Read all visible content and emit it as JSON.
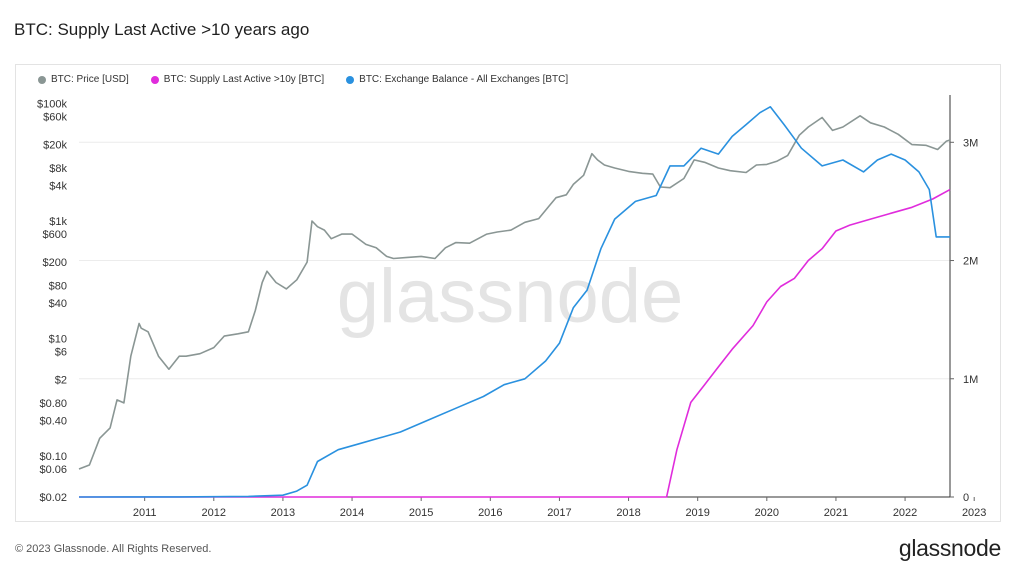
{
  "page": {
    "title": "BTC: Supply Last Active >10 years ago",
    "copyright": "© 2023 Glassnode. All Rights Reserved.",
    "brand": "glassnode",
    "watermark": "glassnode"
  },
  "chart_data": {
    "type": "line",
    "title": "BTC: Supply Last Active >10 years ago",
    "legend_position": "top-left",
    "grid": true,
    "x_ticks": [
      "2011",
      "2012",
      "2013",
      "2014",
      "2015",
      "2016",
      "2017",
      "2018",
      "2019",
      "2020",
      "2021",
      "2022",
      "2023"
    ],
    "x_range": [
      2010.55,
      2023.15
    ],
    "y_left": {
      "scale": "log",
      "range": [
        0.02,
        140000
      ],
      "ticks": [
        {
          "v": 100000,
          "label": "$100k"
        },
        {
          "v": 60000,
          "label": "$60k"
        },
        {
          "v": 20000,
          "label": "$20k"
        },
        {
          "v": 8000,
          "label": "$8k"
        },
        {
          "v": 4000,
          "label": "$4k"
        },
        {
          "v": 1000,
          "label": "$1k"
        },
        {
          "v": 600,
          "label": "$600"
        },
        {
          "v": 200,
          "label": "$200"
        },
        {
          "v": 80,
          "label": "$80"
        },
        {
          "v": 40,
          "label": "$40"
        },
        {
          "v": 10,
          "label": "$10"
        },
        {
          "v": 6,
          "label": "$6"
        },
        {
          "v": 2,
          "label": "$2"
        },
        {
          "v": 0.8,
          "label": "$0.80"
        },
        {
          "v": 0.4,
          "label": "$0.40"
        },
        {
          "v": 0.1,
          "label": "$0.10"
        },
        {
          "v": 0.06,
          "label": "$0.06"
        },
        {
          "v": 0.02,
          "label": "$0.02"
        }
      ]
    },
    "y_right": {
      "scale": "linear",
      "range": [
        0,
        3400000
      ],
      "ticks": [
        {
          "v": 0,
          "label": "0"
        },
        {
          "v": 1000000,
          "label": "1M"
        },
        {
          "v": 2000000,
          "label": "2M"
        },
        {
          "v": 3000000,
          "label": "3M"
        }
      ]
    },
    "series": [
      {
        "name": "BTC: Price [USD]",
        "color": "#8a9694",
        "axis": "left",
        "x": [
          2010.55,
          2010.7,
          2010.85,
          2011.0,
          2011.1,
          2011.2,
          2011.3,
          2011.42,
          2011.45,
          2011.55,
          2011.7,
          2011.85,
          2012.0,
          2012.1,
          2012.3,
          2012.5,
          2012.65,
          2012.85,
          2013.0,
          2013.1,
          2013.2,
          2013.27,
          2013.4,
          2013.55,
          2013.7,
          2013.85,
          2013.92,
          2014.0,
          2014.1,
          2014.2,
          2014.35,
          2014.5,
          2014.7,
          2014.85,
          2015.0,
          2015.1,
          2015.3,
          2015.5,
          2015.7,
          2015.85,
          2016.0,
          2016.2,
          2016.45,
          2016.6,
          2016.8,
          2017.0,
          2017.2,
          2017.35,
          2017.45,
          2017.6,
          2017.7,
          2017.85,
          2017.97,
          2018.05,
          2018.15,
          2018.3,
          2018.5,
          2018.7,
          2018.85,
          2018.96,
          2019.1,
          2019.3,
          2019.45,
          2019.6,
          2019.8,
          2019.97,
          2020.2,
          2020.35,
          2020.5,
          2020.65,
          2020.8,
          2020.97,
          2021.1,
          2021.3,
          2021.45,
          2021.6,
          2021.85,
          2022.0,
          2022.2,
          2022.4,
          2022.6,
          2022.8,
          2022.97,
          2023.1,
          2023.15
        ],
        "values": [
          0.06,
          0.07,
          0.2,
          0.3,
          0.9,
          0.8,
          5,
          18,
          15,
          13,
          5,
          3,
          5,
          5,
          5.5,
          7,
          11,
          12,
          13,
          30,
          90,
          140,
          90,
          70,
          100,
          200,
          1000,
          800,
          700,
          500,
          600,
          600,
          400,
          350,
          250,
          230,
          240,
          250,
          230,
          350,
          430,
          420,
          600,
          650,
          700,
          950,
          1100,
          1800,
          2500,
          2800,
          4200,
          6000,
          14000,
          11000,
          9000,
          8000,
          7000,
          6500,
          6300,
          3800,
          3700,
          5300,
          11000,
          10000,
          8000,
          7200,
          6700,
          9000,
          9200,
          10500,
          13000,
          29000,
          40000,
          58000,
          35000,
          40000,
          62000,
          47000,
          40000,
          30000,
          20000,
          19500,
          16500,
          23000,
          24000
        ]
      },
      {
        "name": "BTC: Supply Last Active >10y [BTC]",
        "color": "#e02cdc",
        "axis": "right",
        "x": [
          2010.55,
          2019.05,
          2019.2,
          2019.4,
          2019.6,
          2019.8,
          2020.0,
          2020.3,
          2020.5,
          2020.7,
          2020.9,
          2021.1,
          2021.3,
          2021.5,
          2021.7,
          2022.0,
          2022.3,
          2022.6,
          2022.9,
          2023.15
        ],
        "values": [
          0,
          0,
          400000,
          800000,
          950000,
          1100000,
          1250000,
          1450000,
          1650000,
          1780000,
          1850000,
          2000000,
          2100000,
          2250000,
          2300000,
          2350000,
          2400000,
          2450000,
          2520000,
          2600000
        ]
      },
      {
        "name": "BTC: Exchange Balance - All Exchanges [BTC]",
        "color": "#2a91df",
        "axis": "right",
        "x": [
          2010.55,
          2012.0,
          2013.0,
          2013.5,
          2013.7,
          2013.85,
          2014.0,
          2014.3,
          2014.6,
          2014.9,
          2015.2,
          2015.6,
          2016.0,
          2016.4,
          2016.7,
          2017.0,
          2017.3,
          2017.5,
          2017.7,
          2017.9,
          2018.1,
          2018.3,
          2018.6,
          2018.9,
          2019.1,
          2019.3,
          2019.55,
          2019.8,
          2020.0,
          2020.2,
          2020.4,
          2020.55,
          2020.75,
          2021.0,
          2021.3,
          2021.6,
          2021.9,
          2022.1,
          2022.3,
          2022.5,
          2022.7,
          2022.85,
          2022.95,
          2023.15
        ],
        "values": [
          0,
          1000,
          5000,
          15000,
          50000,
          100000,
          300000,
          400000,
          450000,
          500000,
          550000,
          650000,
          750000,
          850000,
          950000,
          1000000,
          1150000,
          1300000,
          1600000,
          1750000,
          2100000,
          2350000,
          2500000,
          2550000,
          2800000,
          2800000,
          2950000,
          2900000,
          3050000,
          3150000,
          3250000,
          3300000,
          3150000,
          2950000,
          2800000,
          2850000,
          2750000,
          2850000,
          2900000,
          2850000,
          2750000,
          2600000,
          2200000,
          2200000
        ]
      }
    ]
  }
}
